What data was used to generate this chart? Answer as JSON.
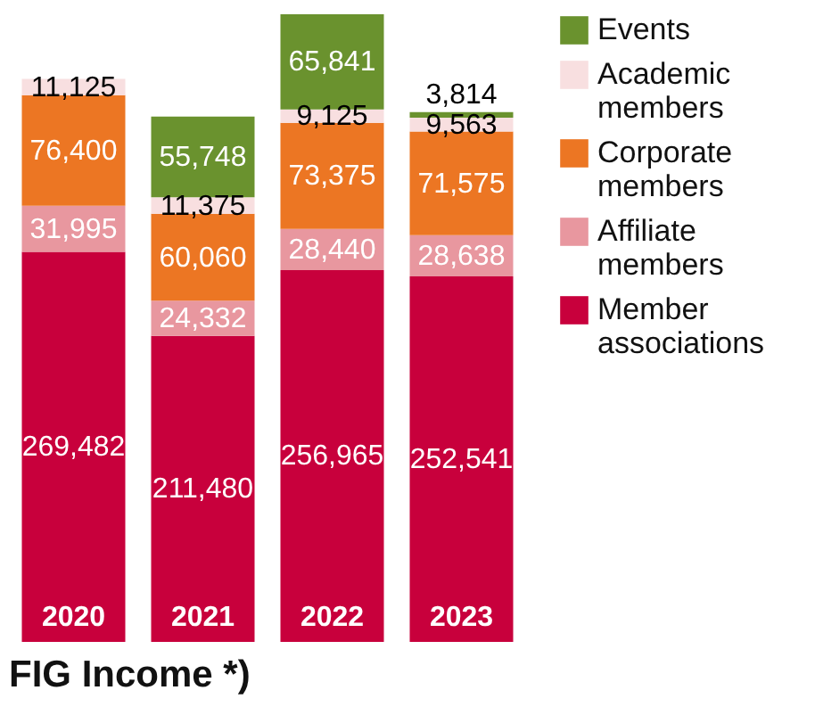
{
  "chart_data": {
    "type": "bar",
    "title": "FIG Income *)",
    "stacked": true,
    "legend": "right",
    "categories": [
      "2020",
      "2021",
      "2022",
      "2023"
    ],
    "series": [
      {
        "name": "Member associations",
        "color": "#c8003c",
        "values": [
          269482,
          211480,
          256965,
          252541
        ],
        "value_labels": [
          "269,482",
          "211,480",
          "256,965",
          "252,541"
        ]
      },
      {
        "name": "Affiliate members",
        "color": "#e8979f",
        "values": [
          31995,
          24332,
          28440,
          28638
        ],
        "value_labels": [
          "31,995",
          "24,332",
          "28,440",
          "28,638"
        ]
      },
      {
        "name": "Corporate members",
        "color": "#ec7623",
        "values": [
          76400,
          60060,
          73375,
          71575
        ],
        "value_labels": [
          "76,400",
          "60,060",
          "73,375",
          "71,575"
        ]
      },
      {
        "name": "Academic members",
        "color": "#f8dfe0",
        "values": [
          11125,
          11375,
          9125,
          9563
        ],
        "value_labels": [
          "11,125",
          "11,375",
          "9,125",
          "9,563"
        ]
      },
      {
        "name": "Events",
        "color": "#6a922e",
        "values": [
          null,
          55748,
          65841,
          3814
        ],
        "value_labels": [
          null,
          "55,748",
          "65,841",
          "3,814"
        ]
      }
    ]
  }
}
